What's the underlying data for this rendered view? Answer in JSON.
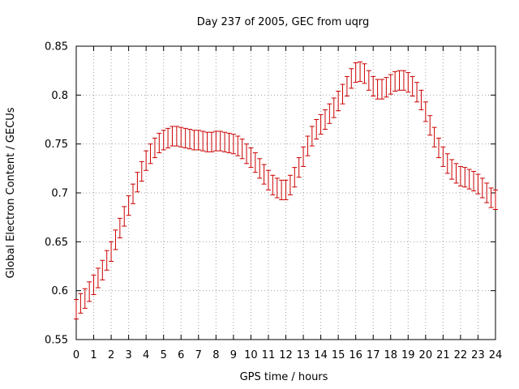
{
  "chart_data": {
    "type": "scatter",
    "style": "errorbars",
    "title": "Day 237 of 2005, GEC from uqrg",
    "xlabel": "GPS time / hours",
    "ylabel": "Global Electron Content / GECUs",
    "xlim": [
      0,
      24
    ],
    "ylim": [
      0.55,
      0.85
    ],
    "xticks": [
      "0",
      "1",
      "2",
      "3",
      "4",
      "5",
      "6",
      "7",
      "8",
      "9",
      "10",
      "11",
      "12",
      "13",
      "14",
      "15",
      "16",
      "17",
      "18",
      "19",
      "20",
      "21",
      "22",
      "23",
      "24"
    ],
    "yticks": [
      "0.55",
      "0.6",
      "0.65",
      "0.7",
      "0.75",
      "0.8",
      "0.85"
    ],
    "grid": true,
    "series_color": "#cc0000",
    "error": 0.01,
    "x": [
      0,
      0.25,
      0.5,
      0.75,
      1,
      1.25,
      1.5,
      1.75,
      2,
      2.25,
      2.5,
      2.75,
      3,
      3.25,
      3.5,
      3.75,
      4,
      4.25,
      4.5,
      4.75,
      5,
      5.25,
      5.5,
      5.75,
      6,
      6.25,
      6.5,
      6.75,
      7,
      7.25,
      7.5,
      7.75,
      8,
      8.25,
      8.5,
      8.75,
      9,
      9.25,
      9.5,
      9.75,
      10,
      10.25,
      10.5,
      10.75,
      11,
      11.25,
      11.5,
      11.75,
      12,
      12.25,
      12.5,
      12.75,
      13,
      13.25,
      13.5,
      13.75,
      14,
      14.25,
      14.5,
      14.75,
      15,
      15.25,
      15.5,
      15.75,
      16,
      16.25,
      16.5,
      16.75,
      17,
      17.25,
      17.5,
      17.75,
      18,
      18.25,
      18.5,
      18.75,
      19,
      19.25,
      19.5,
      19.75,
      20,
      20.25,
      20.5,
      20.75,
      21,
      21.25,
      21.5,
      21.75,
      22,
      22.25,
      22.5,
      22.75,
      23,
      23.25,
      23.5,
      23.75,
      24
    ],
    "y": [
      0.581,
      0.587,
      0.592,
      0.599,
      0.606,
      0.613,
      0.621,
      0.631,
      0.64,
      0.652,
      0.664,
      0.676,
      0.687,
      0.699,
      0.711,
      0.722,
      0.733,
      0.74,
      0.746,
      0.751,
      0.754,
      0.756,
      0.758,
      0.758,
      0.757,
      0.756,
      0.755,
      0.754,
      0.754,
      0.753,
      0.752,
      0.752,
      0.753,
      0.753,
      0.752,
      0.751,
      0.75,
      0.748,
      0.745,
      0.74,
      0.736,
      0.731,
      0.725,
      0.719,
      0.713,
      0.708,
      0.705,
      0.703,
      0.703,
      0.708,
      0.716,
      0.726,
      0.737,
      0.748,
      0.758,
      0.765,
      0.77,
      0.775,
      0.781,
      0.787,
      0.794,
      0.801,
      0.809,
      0.817,
      0.823,
      0.824,
      0.822,
      0.815,
      0.809,
      0.806,
      0.806,
      0.808,
      0.811,
      0.814,
      0.815,
      0.815,
      0.813,
      0.809,
      0.803,
      0.795,
      0.783,
      0.769,
      0.757,
      0.746,
      0.737,
      0.73,
      0.724,
      0.72,
      0.717,
      0.716,
      0.714,
      0.712,
      0.709,
      0.705,
      0.7,
      0.695,
      0.693
    ]
  }
}
